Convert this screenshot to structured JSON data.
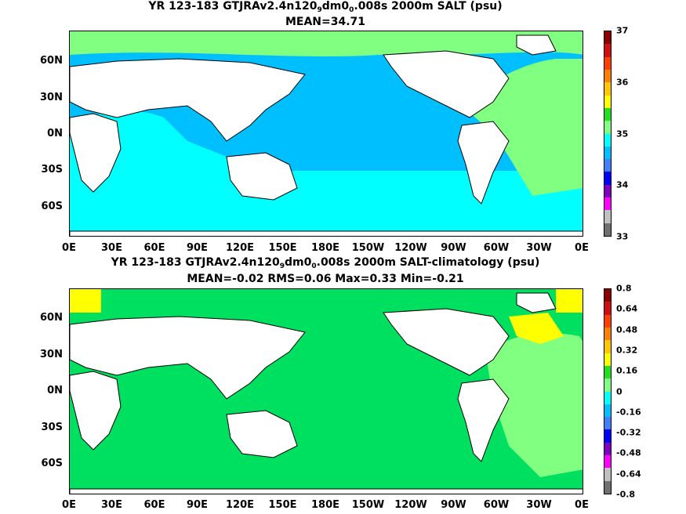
{
  "panels": [
    {
      "title_parts": [
        "YR 123-183 GTJRAv2.4n120",
        "9",
        "dm0",
        "0",
        ".008s 2000m SALT (psu)"
      ],
      "subtitle": "MEAN=34.71",
      "colorbar": {
        "labels": [
          "37",
          "36",
          "35",
          "34",
          "33"
        ],
        "colors": [
          "#8b0000",
          "#d01010",
          "#ff4000",
          "#ff8000",
          "#ffc800",
          "#ffff00",
          "#20e020",
          "#80ff80",
          "#00ffff",
          "#00c0ff",
          "#4080ff",
          "#0000ff",
          "#8000c0",
          "#ff00ff",
          "#c0c0c0",
          "#707070"
        ]
      },
      "colors": {
        "ocean": "#00bfff",
        "southern": "#00ffff",
        "atlantic": "#80ff80",
        "arctic": "#80ff80"
      }
    },
    {
      "title_parts": [
        "YR 123-183 GTJRAv2.4n120",
        "9",
        "dm0",
        "0",
        ".008s 2000m SALT-climatology (psu)"
      ],
      "subtitle": "MEAN=-0.02   RMS=0.06   Max=0.33   Min=-0.21",
      "colorbar": {
        "labels": [
          "0.8",
          "0.64",
          "0.48",
          "0.32",
          "0.16",
          "0",
          "-0.16",
          "-0.32",
          "-0.48",
          "-0.64",
          "-0.8"
        ],
        "colors": [
          "#8b0000",
          "#d01010",
          "#ff4000",
          "#ff8000",
          "#ffc800",
          "#ffff00",
          "#20e020",
          "#80ff80",
          "#00ffff",
          "#00c0ff",
          "#4080ff",
          "#0000ff",
          "#8000c0",
          "#ff00ff",
          "#c0c0c0",
          "#707070"
        ]
      },
      "colors": {
        "ocean": "#00e060",
        "southern": "#80ff80",
        "atlantic": "#80ff80",
        "arctic": "#ffff00"
      }
    }
  ],
  "axes": {
    "lat_labels": [
      "60N",
      "30N",
      "0N",
      "30S",
      "60S"
    ],
    "lon_labels": [
      "0E",
      "30E",
      "60E",
      "90E",
      "120E",
      "150E",
      "180E",
      "150W",
      "120W",
      "90W",
      "60W",
      "30W",
      "0E"
    ]
  }
}
